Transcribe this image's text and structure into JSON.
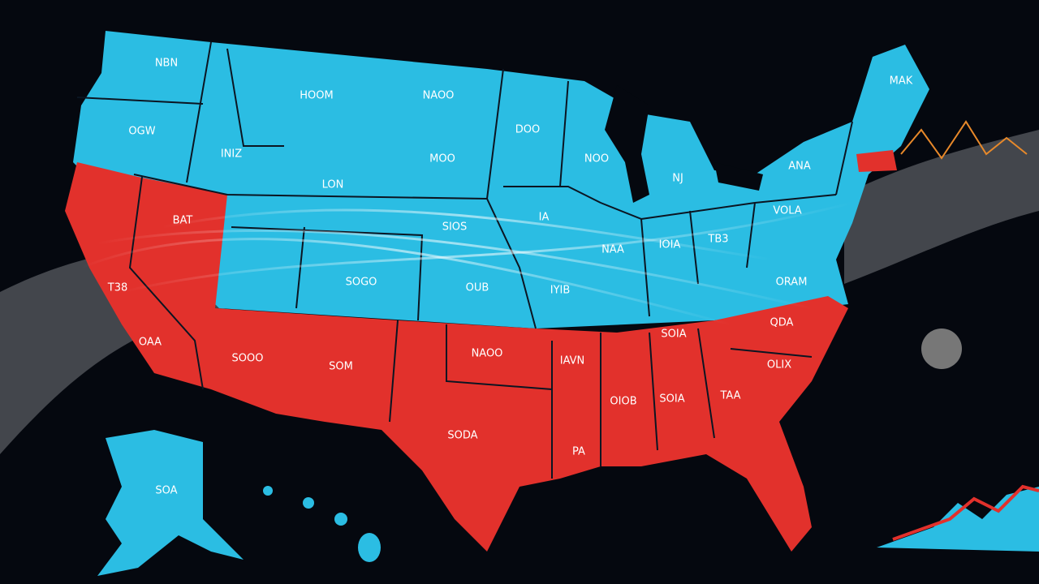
{
  "map": {
    "labels": [
      "NBN",
      "HOOM",
      "NAOO",
      "OGW",
      "DOO",
      "INIZ",
      "MOO",
      "NOO",
      "MAK",
      "ANA",
      "LON",
      "NJ",
      "IA",
      "VOLA",
      "BAT",
      "SIOS",
      "NAA",
      "IOIA",
      "TB3",
      "SOGO",
      "OUB",
      "ORAM",
      "IYIB",
      "T38",
      "OAA",
      "SOOO",
      "SOM",
      "SOIA",
      "QDA",
      "NAOO",
      "IAVN",
      "OLIX",
      "OIOB",
      "SOIA",
      "TAA",
      "SODA",
      "PA",
      "SOA"
    ]
  }
}
